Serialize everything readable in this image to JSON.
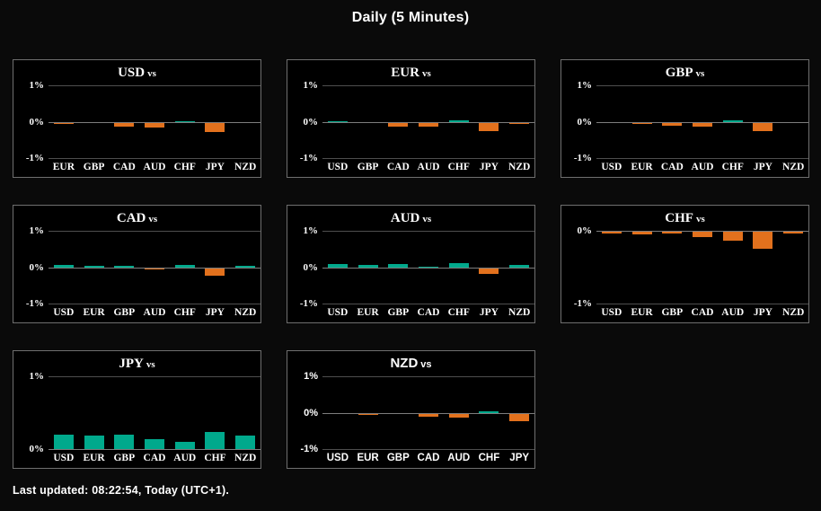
{
  "page": {
    "title": "Daily (5 Minutes)",
    "footer": "Last updated: 08:22:54, Today (UTC+1).",
    "vs_label": "vs"
  },
  "colors": {
    "positive": "#00a98c",
    "negative": "#e2711d"
  },
  "chart_data": [
    {
      "type": "bar",
      "title": "USD vs",
      "code": "USD",
      "categories": [
        "EUR",
        "GBP",
        "CAD",
        "AUD",
        "CHF",
        "JPY",
        "NZD"
      ],
      "values": [
        -0.02,
        0,
        -0.11,
        -0.13,
        0.02,
        -0.25,
        0
      ],
      "ylabel": "%",
      "ylim": [
        -1,
        1
      ],
      "yticks": [
        {
          "label": "1%",
          "value": 1
        },
        {
          "label": "0%",
          "value": 0
        },
        {
          "label": "-1%",
          "value": -1
        }
      ],
      "label_style": "serif"
    },
    {
      "type": "bar",
      "title": "EUR vs",
      "code": "EUR",
      "categories": [
        "USD",
        "GBP",
        "CAD",
        "AUD",
        "CHF",
        "JPY",
        "NZD"
      ],
      "values": [
        0.02,
        0,
        -0.09,
        -0.1,
        0.06,
        -0.23,
        -0.01
      ],
      "ylabel": "%",
      "ylim": [
        -1,
        1
      ],
      "yticks": [
        {
          "label": "1%",
          "value": 1
        },
        {
          "label": "0%",
          "value": 0
        },
        {
          "label": "-1%",
          "value": -1
        }
      ],
      "label_style": "serif"
    },
    {
      "type": "bar",
      "title": "GBP vs",
      "code": "GBP",
      "categories": [
        "USD",
        "EUR",
        "CAD",
        "AUD",
        "CHF",
        "JPY",
        "NZD"
      ],
      "values": [
        0,
        -0.02,
        -0.07,
        -0.1,
        0.05,
        -0.22,
        0
      ],
      "ylabel": "%",
      "ylim": [
        -1,
        1
      ],
      "yticks": [
        {
          "label": "1%",
          "value": 1
        },
        {
          "label": "0%",
          "value": 0
        },
        {
          "label": "-1%",
          "value": -1
        }
      ],
      "label_style": "serif"
    },
    {
      "type": "bar",
      "title": "CAD vs",
      "code": "CAD",
      "categories": [
        "USD",
        "EUR",
        "GBP",
        "AUD",
        "CHF",
        "JPY",
        "NZD"
      ],
      "values": [
        0.07,
        0.04,
        0.05,
        -0.02,
        0.08,
        -0.19,
        0.04
      ],
      "ylabel": "%",
      "ylim": [
        -1,
        1
      ],
      "yticks": [
        {
          "label": "1%",
          "value": 1
        },
        {
          "label": "0%",
          "value": 0
        },
        {
          "label": "-1%",
          "value": -1
        }
      ],
      "label_style": "serif"
    },
    {
      "type": "bar",
      "title": "AUD vs",
      "code": "AUD",
      "categories": [
        "USD",
        "EUR",
        "GBP",
        "CAD",
        "CHF",
        "JPY",
        "NZD"
      ],
      "values": [
        0.11,
        0.08,
        0.1,
        0.03,
        0.12,
        -0.16,
        0.08
      ],
      "ylabel": "%",
      "ylim": [
        -1,
        1
      ],
      "yticks": [
        {
          "label": "1%",
          "value": 1
        },
        {
          "label": "0%",
          "value": 0
        },
        {
          "label": "-1%",
          "value": -1
        }
      ],
      "label_style": "serif"
    },
    {
      "type": "bar",
      "title": "CHF vs",
      "code": "CHF",
      "categories": [
        "USD",
        "EUR",
        "GBP",
        "CAD",
        "AUD",
        "JPY",
        "NZD"
      ],
      "values": [
        -0.02,
        -0.04,
        -0.03,
        -0.07,
        -0.12,
        -0.24,
        -0.02
      ],
      "ylabel": "%",
      "ylim": [
        -1,
        0
      ],
      "yticks": [
        {
          "label": "0%",
          "value": 0
        },
        {
          "label": "-1%",
          "value": -1
        }
      ],
      "label_style": "serif"
    },
    {
      "type": "bar",
      "title": "JPY vs",
      "code": "JPY",
      "categories": [
        "USD",
        "EUR",
        "GBP",
        "CAD",
        "AUD",
        "CHF",
        "NZD"
      ],
      "values": [
        0.2,
        0.19,
        0.2,
        0.14,
        0.1,
        0.23,
        0.19
      ],
      "ylabel": "%",
      "ylim": [
        0,
        1
      ],
      "yticks": [
        {
          "label": "1%",
          "value": 1
        },
        {
          "label": "0%",
          "value": 0
        }
      ],
      "label_style": "serif"
    },
    {
      "type": "bar",
      "title": "NZD vs",
      "code": "NZD",
      "categories": [
        "USD",
        "EUR",
        "GBP",
        "CAD",
        "AUD",
        "CHF",
        "JPY"
      ],
      "values": [
        0,
        -0.02,
        0,
        -0.08,
        -0.11,
        0.05,
        -0.2
      ],
      "ylabel": "%",
      "ylim": [
        -1,
        1
      ],
      "yticks": [
        {
          "label": "1%",
          "value": 1
        },
        {
          "label": "0%",
          "value": 0
        },
        {
          "label": "-1%",
          "value": -1
        }
      ],
      "label_style": "sans"
    }
  ]
}
